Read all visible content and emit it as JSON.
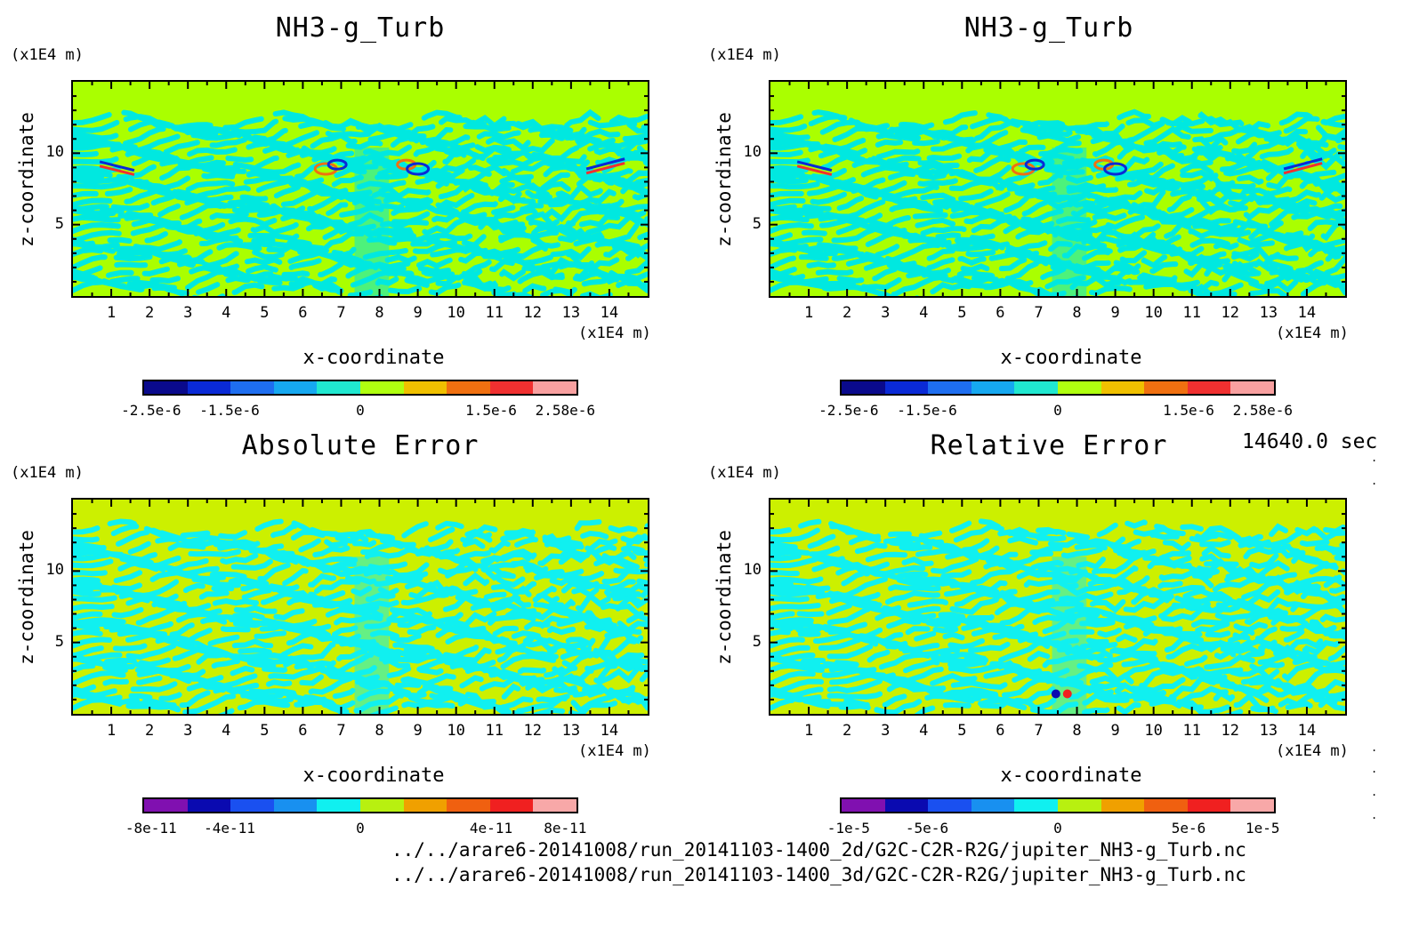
{
  "time_label": "14640.0 sec",
  "footer_paths": [
    "../../arare6-20141008/run_20141103-1400_2d/G2C-C2R-R2G/jupiter_NH3-g_Turb.nc",
    "../../arare6-20141008/run_20141103-1400_3d/G2C-C2R-R2G/jupiter_NH3-g_Turb.nc"
  ],
  "chart_data": [
    {
      "type": "heatmap",
      "title": "NH3-g_Turb",
      "xlabel": "x-coordinate",
      "ylabel": "z-coordinate",
      "x_unit": "(x1E4 m)",
      "z_unit": "(x1E4 m)",
      "xlim": [
        0,
        15
      ],
      "ylim": [
        0,
        15
      ],
      "x_ticks": [
        "1",
        "2",
        "3",
        "4",
        "5",
        "6",
        "7",
        "8",
        "9",
        "10",
        "11",
        "12",
        "13",
        "14"
      ],
      "y_ticks": [
        "5",
        "10"
      ],
      "colorbar_colors": [
        "#0a0a8c",
        "#0a2ad6",
        "#1e6ef0",
        "#16a8f0",
        "#20e8d0",
        "#b0ff10",
        "#f0c000",
        "#f07010",
        "#f03030",
        "#f8a0a0"
      ],
      "colorbar_labels": [
        "-2.5e-6",
        "-1.5e-6",
        "0",
        "1.5e-6",
        "2.58e-6"
      ],
      "background_color": "#aaff00",
      "pattern_color": "#00e8e0"
    },
    {
      "type": "heatmap",
      "title": "NH3-g_Turb",
      "xlabel": "x-coordinate",
      "ylabel": "z-coordinate",
      "x_unit": "(x1E4 m)",
      "z_unit": "(x1E4 m)",
      "xlim": [
        0,
        15
      ],
      "ylim": [
        0,
        15
      ],
      "x_ticks": [
        "1",
        "2",
        "3",
        "4",
        "5",
        "6",
        "7",
        "8",
        "9",
        "10",
        "11",
        "12",
        "13",
        "14"
      ],
      "y_ticks": [
        "5",
        "10"
      ],
      "colorbar_colors": [
        "#0a0a8c",
        "#0a2ad6",
        "#1e6ef0",
        "#16a8f0",
        "#20e8d0",
        "#b0ff10",
        "#f0c000",
        "#f07010",
        "#f03030",
        "#f8a0a0"
      ],
      "colorbar_labels": [
        "-2.5e-6",
        "-1.5e-6",
        "0",
        "1.5e-6",
        "2.58e-6"
      ],
      "background_color": "#aaff00",
      "pattern_color": "#00e8e0"
    },
    {
      "type": "heatmap",
      "title": "Absolute Error",
      "xlabel": "x-coordinate",
      "ylabel": "z-coordinate",
      "x_unit": "(x1E4 m)",
      "z_unit": "(x1E4 m)",
      "xlim": [
        0,
        15
      ],
      "ylim": [
        0,
        15
      ],
      "x_ticks": [
        "1",
        "2",
        "3",
        "4",
        "5",
        "6",
        "7",
        "8",
        "9",
        "10",
        "11",
        "12",
        "13",
        "14"
      ],
      "y_ticks": [
        "5",
        "10"
      ],
      "colorbar_colors": [
        "#8010b0",
        "#0a0ab0",
        "#1a50f0",
        "#1890f0",
        "#10f0f0",
        "#b8f010",
        "#f0a000",
        "#f06010",
        "#f02020",
        "#f8a8a8"
      ],
      "colorbar_labels": [
        "-8e-11",
        "-4e-11",
        "0",
        "4e-11",
        "8e-11"
      ],
      "background_color": "#ccf000",
      "pattern_color": "#10f0f0"
    },
    {
      "type": "heatmap",
      "title": "Relative Error",
      "xlabel": "x-coordinate",
      "ylabel": "z-coordinate",
      "x_unit": "(x1E4 m)",
      "z_unit": "(x1E4 m)",
      "xlim": [
        0,
        15
      ],
      "ylim": [
        0,
        15
      ],
      "x_ticks": [
        "1",
        "2",
        "3",
        "4",
        "5",
        "6",
        "7",
        "8",
        "9",
        "10",
        "11",
        "12",
        "13",
        "14"
      ],
      "y_ticks": [
        "5",
        "10"
      ],
      "colorbar_colors": [
        "#8010b0",
        "#0a0ab0",
        "#1a50f0",
        "#1890f0",
        "#10f0f0",
        "#b8f010",
        "#f0a000",
        "#f06010",
        "#f02020",
        "#f8a8a8"
      ],
      "colorbar_labels": [
        "-1e-5",
        "-5e-6",
        "0",
        "5e-6",
        "1e-5"
      ],
      "background_color": "#ccf000",
      "pattern_color": "#10f0f0"
    }
  ]
}
